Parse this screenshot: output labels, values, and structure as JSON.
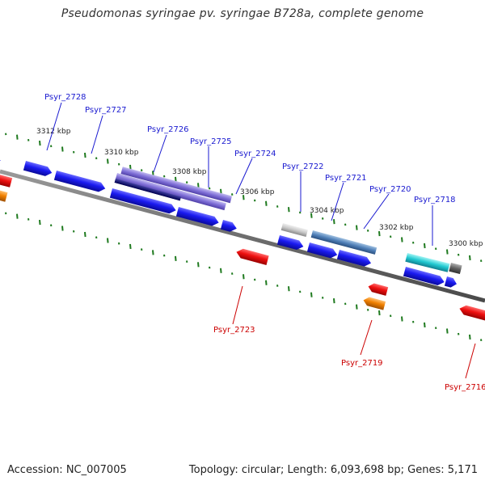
{
  "title": "Pseudomonas syringae pv. syringae B728a, complete genome",
  "footer": {
    "accession": "Accession: NC_007005",
    "stats": "Topology: circular; Length: 6,093,698 bp; Genes: 5,171"
  },
  "colors": {
    "backbone": "#7a7a7a",
    "tick": "#1f7a1f",
    "forward_gene": "#1a1af0",
    "reverse_gene": "#ee1010",
    "reverse_gene_alt": "#f08000",
    "label_forward": "#1a1ad0",
    "label_reverse": "#cc0000"
  },
  "kbp_labels": [
    "3312 kbp",
    "3310 kbp",
    "3308 kbp",
    "3306 kbp",
    "3304 kbp",
    "3302 kbp",
    "3300 kbp"
  ],
  "gene_labels": {
    "psyr_2728": "Psyr_2728",
    "psyr_2727": "Psyr_2727",
    "psyr_2726": "Psyr_2726",
    "psyr_2725": "Psyr_2725",
    "psyr_2724": "Psyr_2724",
    "psyr_2722": "Psyr_2722",
    "psyr_2721": "Psyr_2721",
    "psyr_2720": "Psyr_2720",
    "psyr_2718": "Psyr_2718",
    "psyr_2723": "Psyr_2723",
    "psyr_2719": "Psyr_2719",
    "psyr_2716": "Psyr_2716"
  }
}
